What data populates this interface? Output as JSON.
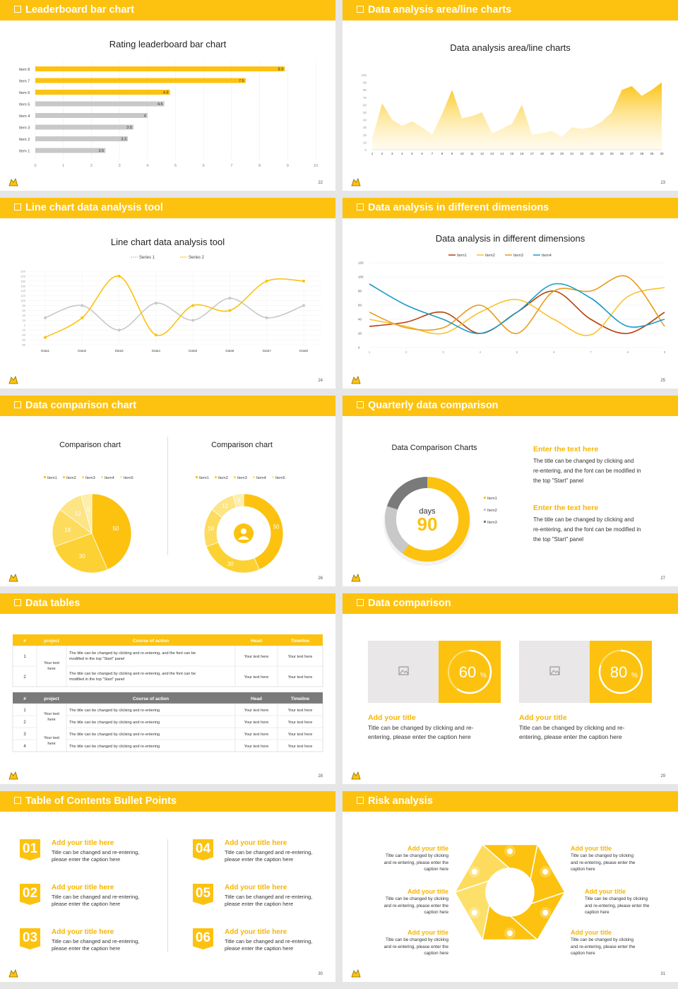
{
  "colors": {
    "accent": "#fcc20f",
    "gray": "#c8c8c8",
    "dark_gray": "#7a7a7a"
  },
  "slides": [
    {
      "header": "Leaderboard bar chart",
      "page": "22"
    },
    {
      "header": "Data analysis area/line charts",
      "page": "23"
    },
    {
      "header": "Line chart data analysis tool",
      "page": "24"
    },
    {
      "header": "Data analysis in different dimensions",
      "page": "25"
    },
    {
      "header": "Data comparison chart",
      "page": "26"
    },
    {
      "header": "Quarterly data comparison",
      "page": "27"
    },
    {
      "header": "Data tables",
      "page": "28"
    },
    {
      "header": "Data comparison",
      "page": "29"
    },
    {
      "header": "Table of Contents Bullet Points",
      "page": "30"
    },
    {
      "header": "Risk analysis",
      "page": "31"
    }
  ],
  "chart_data": [
    {
      "type": "bar",
      "title": "Rating leaderboard bar chart",
      "orientation": "horizontal",
      "categories": [
        "Item 8",
        "Item 7",
        "Item 6",
        "Item 5",
        "Item 4",
        "Item 3",
        "Item 2",
        "Item 1"
      ],
      "values": [
        8.9,
        7.5,
        4.8,
        4.6,
        4,
        3.5,
        3.3,
        2.5
      ],
      "value_labels": [
        "8.9",
        "7.5",
        "4.8",
        "4.6",
        "4",
        "3.5",
        "3.3",
        "2.5"
      ],
      "highlighted": [
        true,
        true,
        true,
        false,
        false,
        false,
        false,
        false
      ],
      "xlim": [
        0,
        10
      ],
      "xticks": [
        "0",
        "1",
        "2",
        "3",
        "4",
        "5",
        "6",
        "7",
        "8",
        "9",
        "10"
      ]
    },
    {
      "type": "area",
      "title": "Data analysis area/line charts",
      "x": [
        "1",
        "2",
        "3",
        "4",
        "5",
        "6",
        "7",
        "8",
        "9",
        "10",
        "11",
        "12",
        "13",
        "14",
        "15",
        "16",
        "17",
        "18",
        "19",
        "20",
        "21",
        "22",
        "23",
        "24",
        "25",
        "26",
        "27",
        "28",
        "29",
        "30"
      ],
      "values": [
        15,
        62,
        40,
        32,
        38,
        30,
        20,
        48,
        80,
        42,
        45,
        50,
        22,
        28,
        35,
        60,
        20,
        22,
        25,
        17,
        30,
        28,
        30,
        38,
        50,
        80,
        85,
        72,
        80,
        90
      ],
      "ylim": [
        0,
        100
      ],
      "yticks": [
        "0",
        "10",
        "20",
        "30",
        "40",
        "50",
        "60",
        "70",
        "80",
        "90",
        "100"
      ]
    },
    {
      "type": "line",
      "title": "Line chart data analysis tool",
      "legend": [
        "Series 1",
        "Series 2"
      ],
      "categories": [
        "Data1",
        "Data2",
        "Data3",
        "Data4",
        "Data5",
        "Data6",
        "Data7",
        "Data8"
      ],
      "series": [
        {
          "name": "Series 1",
          "values": [
            30,
            80,
            -20,
            90,
            20,
            110,
            30,
            80
          ]
        },
        {
          "name": "Series 2",
          "values": [
            -50,
            30,
            200,
            -40,
            80,
            60,
            180,
            180
          ]
        }
      ],
      "ylim": [
        -80,
        220
      ],
      "yticks": [
        "220",
        "200",
        "180",
        "160",
        "140",
        "120",
        "100",
        "80",
        "60",
        "40",
        "20",
        "0",
        "-20",
        "-40",
        "-60",
        "-80"
      ]
    },
    {
      "type": "line",
      "title": "Data analysis in different dimensions",
      "legend": [
        "Item1",
        "Item2",
        "Item3",
        "Item4"
      ],
      "x": [
        "1",
        "2",
        "3",
        "4",
        "5",
        "6",
        "7",
        "8",
        "9"
      ],
      "series": [
        {
          "name": "Item1",
          "color": "#b5400b",
          "values": [
            30,
            36,
            50,
            20,
            50,
            80,
            40,
            20,
            50
          ]
        },
        {
          "name": "Item2",
          "color": "#f9c22e",
          "values": [
            40,
            30,
            20,
            50,
            68,
            40,
            18,
            72,
            85
          ]
        },
        {
          "name": "Item3",
          "color": "#e89b1c",
          "values": [
            50,
            28,
            28,
            60,
            20,
            80,
            80,
            100,
            30
          ]
        },
        {
          "name": "Item4",
          "color": "#1b9ac8",
          "values": [
            90,
            60,
            40,
            20,
            50,
            90,
            70,
            30,
            40
          ]
        }
      ],
      "ylim": [
        0,
        120
      ],
      "yticks": [
        "0",
        "20",
        "40",
        "60",
        "80",
        "100",
        "120"
      ]
    },
    {
      "type": "pie",
      "title": "Comparison chart",
      "legend": [
        "Item1",
        "Item2",
        "Item3",
        "Item4",
        "Item5"
      ],
      "values": [
        50,
        30,
        18,
        12,
        5
      ],
      "labels": [
        "50",
        "30",
        "18",
        "12",
        "5"
      ]
    },
    {
      "type": "pie",
      "variant": "donut",
      "title": "Comparison chart",
      "legend": [
        "Item1",
        "Item2",
        "Item3",
        "Item4",
        "Item5"
      ],
      "values": [
        50,
        30,
        18,
        12,
        5
      ],
      "labels": [
        "50",
        "30",
        "18",
        "12",
        "5"
      ]
    },
    {
      "type": "pie",
      "variant": "donut",
      "title": "Data Comparison Charts",
      "legend": [
        "Item1",
        "Item2",
        "Item3"
      ],
      "values": [
        60,
        20,
        20
      ],
      "center_top": "days",
      "center_value": "90"
    }
  ],
  "s6": {
    "blocks": [
      {
        "title": "Enter the text here",
        "body": [
          "The title can be changed by clicking and",
          "re-entering, and the font can be modified in",
          "the top \"Start\" panel"
        ]
      },
      {
        "title": "Enter the text here",
        "body": [
          "The title can be changed by clicking and",
          "re-entering, and the font can be modified in",
          "the top \"Start\" panel"
        ]
      }
    ]
  },
  "s7": {
    "table1": {
      "headers": [
        "#",
        "project",
        "Course of action",
        "Head",
        "Timeline"
      ],
      "rows": [
        {
          "n": "1",
          "action": [
            "The title can be changed by clicking and re-entering, and the font can be",
            "modified in the top \"Start\" panel"
          ],
          "head": "Your text here",
          "time": "Your text here"
        },
        {
          "n": "2",
          "action": [
            "The title can be changed by clicking and re-entering, and the font can be",
            "modified in the top \"Start\" panel"
          ],
          "head": "Your text here",
          "time": "Your text here"
        }
      ],
      "project": [
        "Your text",
        "here"
      ]
    },
    "table2": {
      "headers": [
        "#",
        "project",
        "Course of action",
        "Head",
        "Timeline"
      ],
      "rows": [
        {
          "n": "1",
          "action": "The title can be changed by clicking and re-entering",
          "head": "Your text here",
          "time": "Your text here"
        },
        {
          "n": "2",
          "action": "The title can be changed by clicking and re-entering",
          "head": "Your text here",
          "time": "Your text here"
        },
        {
          "n": "3",
          "action": "The title can be changed by clicking and re-entering",
          "head": "Your text here",
          "time": "Your text here"
        },
        {
          "n": "4",
          "action": "The title can be changed by clicking and re-entering",
          "head": "Your text here",
          "time": "Your text here"
        }
      ],
      "project_a": [
        "Your text",
        "here"
      ],
      "project_b": [
        "Your text",
        "here"
      ]
    }
  },
  "s8": {
    "cards": [
      {
        "value": "60",
        "unit": "%",
        "fraction": 0.6,
        "title": "Add your title",
        "body": [
          "Title can be changed by clicking and re-",
          "entering, please enter the caption here"
        ]
      },
      {
        "value": "80",
        "unit": "%",
        "fraction": 0.8,
        "title": "Add your title",
        "body": [
          "Title can be changed by clicking and re-",
          "entering, please enter the caption here"
        ]
      }
    ]
  },
  "s9": {
    "items": [
      {
        "num": "01",
        "title": "Add your title here",
        "body": [
          "Title can be changed and re-entering,",
          "please enter the caption here"
        ]
      },
      {
        "num": "02",
        "title": "Add your title here",
        "body": [
          "Title can be changed and re-entering,",
          "please enter the caption here"
        ]
      },
      {
        "num": "03",
        "title": "Add your title here",
        "body": [
          "Title can be changed and re-entering,",
          "please enter the caption here"
        ]
      },
      {
        "num": "04",
        "title": "Add your title here",
        "body": [
          "Title can be changed and re-entering,",
          "please enter the caption here"
        ]
      },
      {
        "num": "05",
        "title": "Add your title here",
        "body": [
          "Title can be changed and re-entering,",
          "please enter the caption here"
        ]
      },
      {
        "num": "06",
        "title": "Add your title here",
        "body": [
          "Title can be changed and re-entering,",
          "please enter the caption here"
        ]
      }
    ]
  },
  "s10": {
    "items": [
      {
        "title": "Add your title",
        "body": [
          "Title can be changed by clicking",
          "and re-entering, please enter the",
          "caption here"
        ]
      },
      {
        "title": "Add your title",
        "body": [
          "Title can be changed by clicking",
          "and re-entering, please enter the",
          "caption here"
        ]
      },
      {
        "title": "Add your title",
        "body": [
          "Title can be changed by clicking",
          "and re-entering, please enter the",
          "caption here"
        ]
      },
      {
        "title": "Add your title",
        "body": [
          "Title can be changed by clicking",
          "and re-entering, please enter the",
          "caption here"
        ]
      },
      {
        "title": "Add your title",
        "body": [
          "Title can be changed by clicking",
          "and re-entering, please enter the",
          "caption here"
        ]
      },
      {
        "title": "Add your title",
        "body": [
          "Title can be changed by clicking",
          "and re-entering, please enter the",
          "caption here"
        ]
      }
    ],
    "icons": [
      "money-bag-icon",
      "coins-icon",
      "people-icon",
      "pie-chart-icon",
      "building-icon",
      "wallet-icon"
    ]
  }
}
